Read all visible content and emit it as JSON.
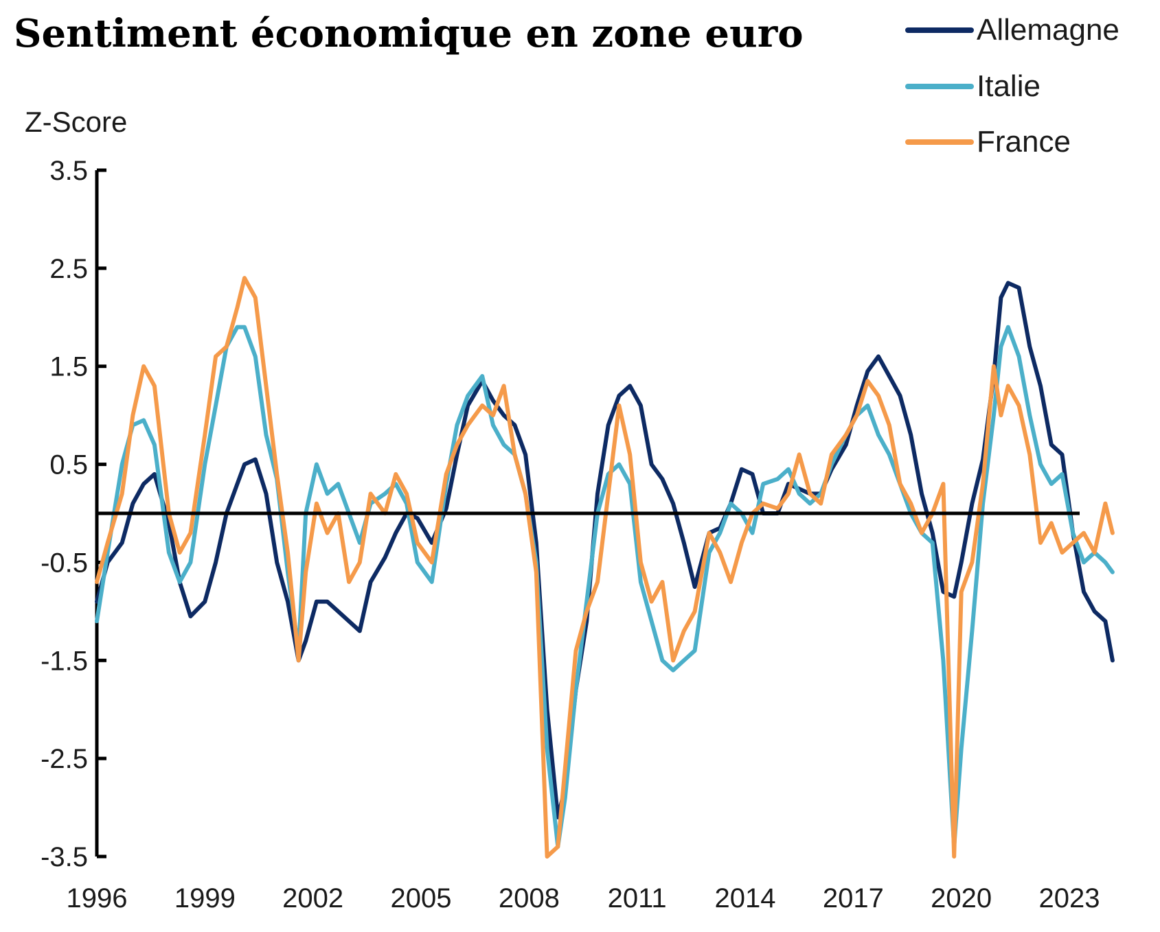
{
  "chart_data": {
    "type": "line",
    "title": "Sentiment économique en zone euro",
    "ylabel": "Z-Score",
    "xlabel": "",
    "ylim": [
      -3.5,
      3.5
    ],
    "xlim": [
      1996,
      2024.3
    ],
    "y_ticks": [
      "3.5",
      "2.5",
      "1.5",
      "0.5",
      "-0.5",
      "-1.5",
      "-2.5",
      "-3.5"
    ],
    "x_ticks": [
      "1996",
      "1999",
      "2002",
      "2005",
      "2008",
      "2011",
      "2014",
      "2017",
      "2020",
      "2023"
    ],
    "zero_line": true,
    "grid": false,
    "legend_position": "top-right",
    "colors": {
      "Allemagne": "#0d2a63",
      "Italie": "#4bafc9",
      "France": "#f59a4a"
    },
    "series": [
      {
        "name": "Allemagne",
        "x": [
          1996.0,
          1996.3,
          1996.7,
          1997.0,
          1997.3,
          1997.6,
          1998.0,
          1998.3,
          1998.6,
          1999.0,
          1999.3,
          1999.6,
          1999.9,
          2000.1,
          2000.4,
          2000.7,
          2001.0,
          2001.3,
          2001.6,
          2001.8,
          2002.1,
          2002.4,
          2002.7,
          2003.0,
          2003.3,
          2003.6,
          2004.0,
          2004.3,
          2004.6,
          2004.9,
          2005.3,
          2005.7,
          2006.0,
          2006.3,
          2006.7,
          2007.0,
          2007.3,
          2007.6,
          2007.9,
          2008.2,
          2008.5,
          2008.8,
          2009.0,
          2009.3,
          2009.6,
          2009.9,
          2010.2,
          2010.5,
          2010.8,
          2011.1,
          2011.4,
          2011.7,
          2012.0,
          2012.3,
          2012.6,
          2013.0,
          2013.3,
          2013.6,
          2013.9,
          2014.2,
          2014.5,
          2014.9,
          2015.2,
          2015.5,
          2015.8,
          2016.1,
          2016.4,
          2016.8,
          2017.1,
          2017.4,
          2017.7,
          2018.0,
          2018.3,
          2018.6,
          2018.9,
          2019.2,
          2019.5,
          2019.8,
          2020.0,
          2020.3,
          2020.6,
          2020.9,
          2021.1,
          2021.3,
          2021.6,
          2021.9,
          2022.2,
          2022.5,
          2022.8,
          2023.1,
          2023.4,
          2023.7,
          2024.0,
          2024.2
        ],
        "values": [
          -0.9,
          -0.5,
          -0.3,
          0.1,
          0.3,
          0.4,
          -0.1,
          -0.7,
          -1.05,
          -0.9,
          -0.5,
          0.0,
          0.3,
          0.5,
          0.55,
          0.2,
          -0.5,
          -0.9,
          -1.5,
          -1.3,
          -0.9,
          -0.9,
          -1.0,
          -1.1,
          -1.2,
          -0.7,
          -0.45,
          -0.2,
          0.0,
          -0.05,
          -0.3,
          0.05,
          0.6,
          1.1,
          1.35,
          1.15,
          1.0,
          0.9,
          0.6,
          -0.3,
          -2.0,
          -3.1,
          -2.8,
          -1.8,
          -1.1,
          0.2,
          0.9,
          1.2,
          1.3,
          1.1,
          0.5,
          0.35,
          0.1,
          -0.3,
          -0.75,
          -0.2,
          -0.15,
          0.1,
          0.45,
          0.4,
          0.0,
          0.0,
          0.3,
          0.25,
          0.2,
          0.2,
          0.45,
          0.7,
          1.1,
          1.45,
          1.6,
          1.4,
          1.2,
          0.8,
          0.2,
          -0.2,
          -0.8,
          -0.85,
          -0.5,
          0.1,
          0.55,
          1.4,
          2.2,
          2.35,
          2.3,
          1.7,
          1.3,
          0.7,
          0.6,
          -0.2,
          -0.8,
          -1.0,
          -1.1,
          -1.5
        ]
      },
      {
        "name": "Italie",
        "x": [
          1996.0,
          1996.3,
          1996.7,
          1997.0,
          1997.3,
          1997.6,
          1998.0,
          1998.3,
          1998.6,
          1999.0,
          1999.3,
          1999.6,
          1999.9,
          2000.1,
          2000.4,
          2000.7,
          2001.0,
          2001.3,
          2001.6,
          2001.8,
          2002.1,
          2002.4,
          2002.7,
          2003.0,
          2003.3,
          2003.6,
          2004.0,
          2004.3,
          2004.6,
          2004.9,
          2005.3,
          2005.7,
          2006.0,
          2006.3,
          2006.7,
          2007.0,
          2007.3,
          2007.6,
          2007.9,
          2008.2,
          2008.5,
          2008.8,
          2009.0,
          2009.3,
          2009.6,
          2009.9,
          2010.2,
          2010.5,
          2010.8,
          2011.1,
          2011.4,
          2011.7,
          2012.0,
          2012.3,
          2012.6,
          2013.0,
          2013.3,
          2013.6,
          2013.9,
          2014.2,
          2014.5,
          2014.9,
          2015.2,
          2015.5,
          2015.8,
          2016.1,
          2016.4,
          2016.8,
          2017.1,
          2017.4,
          2017.7,
          2018.0,
          2018.3,
          2018.6,
          2018.9,
          2019.2,
          2019.5,
          2019.8,
          2020.0,
          2020.3,
          2020.6,
          2020.9,
          2021.1,
          2021.3,
          2021.6,
          2021.9,
          2022.2,
          2022.5,
          2022.8,
          2023.1,
          2023.4,
          2023.7,
          2024.0,
          2024.2
        ],
        "values": [
          -1.1,
          -0.4,
          0.5,
          0.9,
          0.95,
          0.7,
          -0.4,
          -0.7,
          -0.5,
          0.5,
          1.1,
          1.7,
          1.9,
          1.9,
          1.6,
          0.8,
          0.35,
          -0.6,
          -1.4,
          0.0,
          0.5,
          0.2,
          0.3,
          0.0,
          -0.3,
          0.1,
          0.2,
          0.3,
          0.1,
          -0.5,
          -0.7,
          0.3,
          0.9,
          1.2,
          1.4,
          0.9,
          0.7,
          0.6,
          0.2,
          -0.5,
          -2.4,
          -3.4,
          -2.9,
          -1.8,
          -0.9,
          0.0,
          0.4,
          0.5,
          0.3,
          -0.7,
          -1.1,
          -1.5,
          -1.6,
          -1.5,
          -1.4,
          -0.4,
          -0.2,
          0.1,
          0.0,
          -0.2,
          0.3,
          0.35,
          0.45,
          0.2,
          0.1,
          0.2,
          0.5,
          0.8,
          1.0,
          1.1,
          0.8,
          0.6,
          0.3,
          0.0,
          -0.2,
          -0.3,
          -1.5,
          -3.4,
          -2.4,
          -1.2,
          0.1,
          1.0,
          1.7,
          1.9,
          1.6,
          1.0,
          0.5,
          0.3,
          0.4,
          -0.2,
          -0.5,
          -0.4,
          -0.5,
          -0.6
        ]
      },
      {
        "name": "France",
        "x": [
          1996.0,
          1996.3,
          1996.7,
          1997.0,
          1997.3,
          1997.6,
          1998.0,
          1998.3,
          1998.6,
          1999.0,
          1999.3,
          1999.6,
          1999.9,
          2000.1,
          2000.4,
          2000.7,
          2001.0,
          2001.3,
          2001.6,
          2001.8,
          2002.1,
          2002.4,
          2002.7,
          2003.0,
          2003.3,
          2003.6,
          2004.0,
          2004.3,
          2004.6,
          2004.9,
          2005.3,
          2005.7,
          2006.0,
          2006.3,
          2006.7,
          2007.0,
          2007.3,
          2007.6,
          2007.9,
          2008.2,
          2008.5,
          2008.8,
          2009.0,
          2009.3,
          2009.6,
          2009.9,
          2010.2,
          2010.5,
          2010.8,
          2011.1,
          2011.4,
          2011.7,
          2012.0,
          2012.3,
          2012.6,
          2013.0,
          2013.3,
          2013.6,
          2013.9,
          2014.2,
          2014.5,
          2014.9,
          2015.2,
          2015.5,
          2015.8,
          2016.1,
          2016.4,
          2016.8,
          2017.1,
          2017.4,
          2017.7,
          2018.0,
          2018.3,
          2018.6,
          2018.9,
          2019.2,
          2019.5,
          2019.8,
          2020.0,
          2020.3,
          2020.6,
          2020.9,
          2021.1,
          2021.3,
          2021.6,
          2021.9,
          2022.2,
          2022.5,
          2022.8,
          2023.1,
          2023.4,
          2023.7,
          2024.0,
          2024.2
        ],
        "values": [
          -0.7,
          -0.3,
          0.2,
          1.0,
          1.5,
          1.3,
          0.0,
          -0.4,
          -0.2,
          0.8,
          1.6,
          1.7,
          2.1,
          2.4,
          2.2,
          1.3,
          0.4,
          -0.4,
          -1.5,
          -0.6,
          0.1,
          -0.2,
          0.0,
          -0.7,
          -0.5,
          0.2,
          0.0,
          0.4,
          0.2,
          -0.3,
          -0.5,
          0.4,
          0.7,
          0.9,
          1.1,
          1.0,
          1.3,
          0.6,
          0.2,
          -0.6,
          -3.5,
          -3.4,
          -2.6,
          -1.4,
          -1.0,
          -0.7,
          0.2,
          1.1,
          0.6,
          -0.5,
          -0.9,
          -0.7,
          -1.5,
          -1.2,
          -1.0,
          -0.2,
          -0.4,
          -0.7,
          -0.3,
          0.0,
          0.1,
          0.05,
          0.2,
          0.6,
          0.2,
          0.1,
          0.6,
          0.8,
          1.0,
          1.35,
          1.2,
          0.9,
          0.3,
          0.1,
          -0.2,
          0.0,
          0.3,
          -3.5,
          -0.8,
          -0.5,
          0.3,
          1.5,
          1.0,
          1.3,
          1.1,
          0.6,
          -0.3,
          -0.1,
          -0.4,
          -0.3,
          -0.2,
          -0.4,
          0.1,
          -0.2
        ]
      }
    ]
  }
}
